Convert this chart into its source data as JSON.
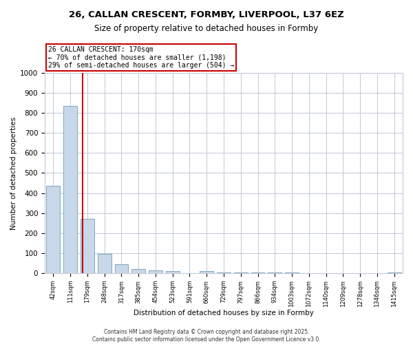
{
  "title": "26, CALLAN CRESCENT, FORMBY, LIVERPOOL, L37 6EZ",
  "subtitle": "Size of property relative to detached houses in Formby",
  "xlabel": "Distribution of detached houses by size in Formby",
  "ylabel": "Number of detached properties",
  "categories": [
    "42sqm",
    "111sqm",
    "179sqm",
    "248sqm",
    "317sqm",
    "385sqm",
    "454sqm",
    "523sqm",
    "591sqm",
    "660sqm",
    "729sqm",
    "797sqm",
    "866sqm",
    "934sqm",
    "1003sqm",
    "1072sqm",
    "1140sqm",
    "1209sqm",
    "1278sqm",
    "1346sqm",
    "1415sqm"
  ],
  "values": [
    435,
    835,
    270,
    95,
    45,
    20,
    15,
    10,
    0,
    10,
    5,
    2,
    2,
    2,
    2,
    0,
    0,
    0,
    0,
    0,
    5
  ],
  "bar_color": "#c8d8e8",
  "bar_edge_color": "#5a8ab0",
  "red_line_index": 1.72,
  "annotation_line1": "26 CALLAN CRESCENT: 170sqm",
  "annotation_line2": "← 70% of detached houses are smaller (1,198)",
  "annotation_line3": "29% of semi-detached houses are larger (504) →",
  "annotation_box_color": "#ffffff",
  "annotation_box_edge_color": "#cc0000",
  "red_line_color": "#cc0000",
  "ylim": [
    0,
    1000
  ],
  "yticks": [
    0,
    100,
    200,
    300,
    400,
    500,
    600,
    700,
    800,
    900,
    1000
  ],
  "grid_color": "#c0c8d8",
  "footer_line1": "Contains HM Land Registry data © Crown copyright and database right 2025.",
  "footer_line2": "Contains public sector information licensed under the Open Government Licence v3.0.",
  "bg_color": "#ffffff"
}
